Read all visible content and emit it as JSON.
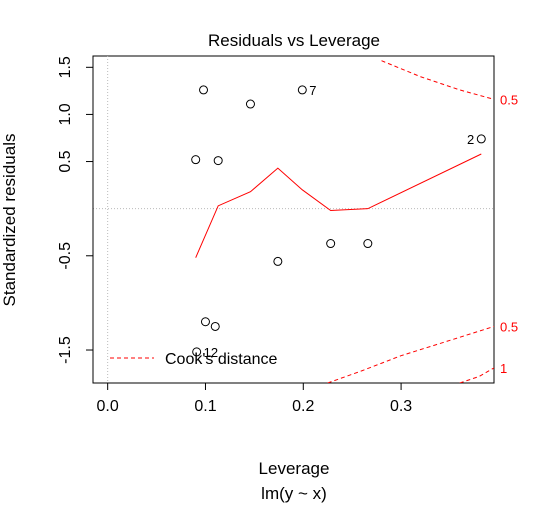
{
  "chart_data": {
    "type": "scatter",
    "title": "Residuals vs Leverage",
    "xlabel": "Leverage",
    "subtitle": "lm(y ~ x)",
    "ylabel": "Standardized residuals",
    "xlim": [
      -0.015,
      0.395
    ],
    "ylim": [
      -1.85,
      1.62
    ],
    "xticks": [
      0.0,
      0.1,
      0.2,
      0.3
    ],
    "xtick_labels": [
      "0.0",
      "0.1",
      "0.2",
      "0.3"
    ],
    "yticks": [
      -1.5,
      -0.5,
      0.5,
      1.0,
      1.5
    ],
    "ytick_labels": [
      "-1.5",
      "-0.5",
      "0.5",
      "1.0",
      "1.5"
    ],
    "grid": false,
    "points": [
      {
        "x": 0.098,
        "y": 1.26
      },
      {
        "x": 0.146,
        "y": 1.11
      },
      {
        "x": 0.199,
        "y": 1.26
      },
      {
        "x": 0.382,
        "y": 0.74
      },
      {
        "x": 0.09,
        "y": 0.52
      },
      {
        "x": 0.113,
        "y": 0.51
      },
      {
        "x": 0.228,
        "y": -0.37
      },
      {
        "x": 0.266,
        "y": -0.37
      },
      {
        "x": 0.174,
        "y": -0.56
      },
      {
        "x": 0.1,
        "y": -1.2
      },
      {
        "x": 0.11,
        "y": -1.25
      },
      {
        "x": 0.091,
        "y": -1.52
      }
    ],
    "point_labels": [
      {
        "text": "7",
        "x": 0.199,
        "y": 1.26,
        "side": "right"
      },
      {
        "text": "2",
        "x": 0.382,
        "y": 0.74,
        "side": "left"
      },
      {
        "text": "12",
        "x": 0.091,
        "y": -1.52,
        "side": "right"
      }
    ],
    "smooth_line": {
      "color": "#ff0000",
      "x": [
        0.09,
        0.113,
        0.146,
        0.174,
        0.199,
        0.228,
        0.266,
        0.382
      ],
      "y": [
        -0.52,
        0.03,
        0.18,
        0.43,
        0.2,
        -0.02,
        0.0,
        0.58
      ]
    },
    "cooks_distance": {
      "color": "#ff0000",
      "style": "dashed",
      "upper_05": {
        "x": [
          0.28,
          0.32,
          0.36,
          0.395
        ],
        "y": [
          1.57,
          1.4,
          1.26,
          1.16
        ]
      },
      "lower_05": {
        "x": [
          0.225,
          0.26,
          0.3,
          0.34,
          0.395
        ],
        "y": [
          -1.85,
          -1.72,
          -1.56,
          -1.43,
          -1.25
        ]
      },
      "lower_1": {
        "x": [
          0.36,
          0.38,
          0.395
        ],
        "y": [
          -1.85,
          -1.78,
          -1.69
        ]
      },
      "contour_labels": [
        "0.5",
        "0.5",
        "1"
      ]
    },
    "legend": {
      "position": "bottom-left",
      "label": "Cook's distance",
      "color": "#ff0000",
      "style": "dashed"
    },
    "reference_lines": {
      "h": 0,
      "v": 0,
      "color": "#bbbbbb",
      "style": "dotted"
    }
  }
}
